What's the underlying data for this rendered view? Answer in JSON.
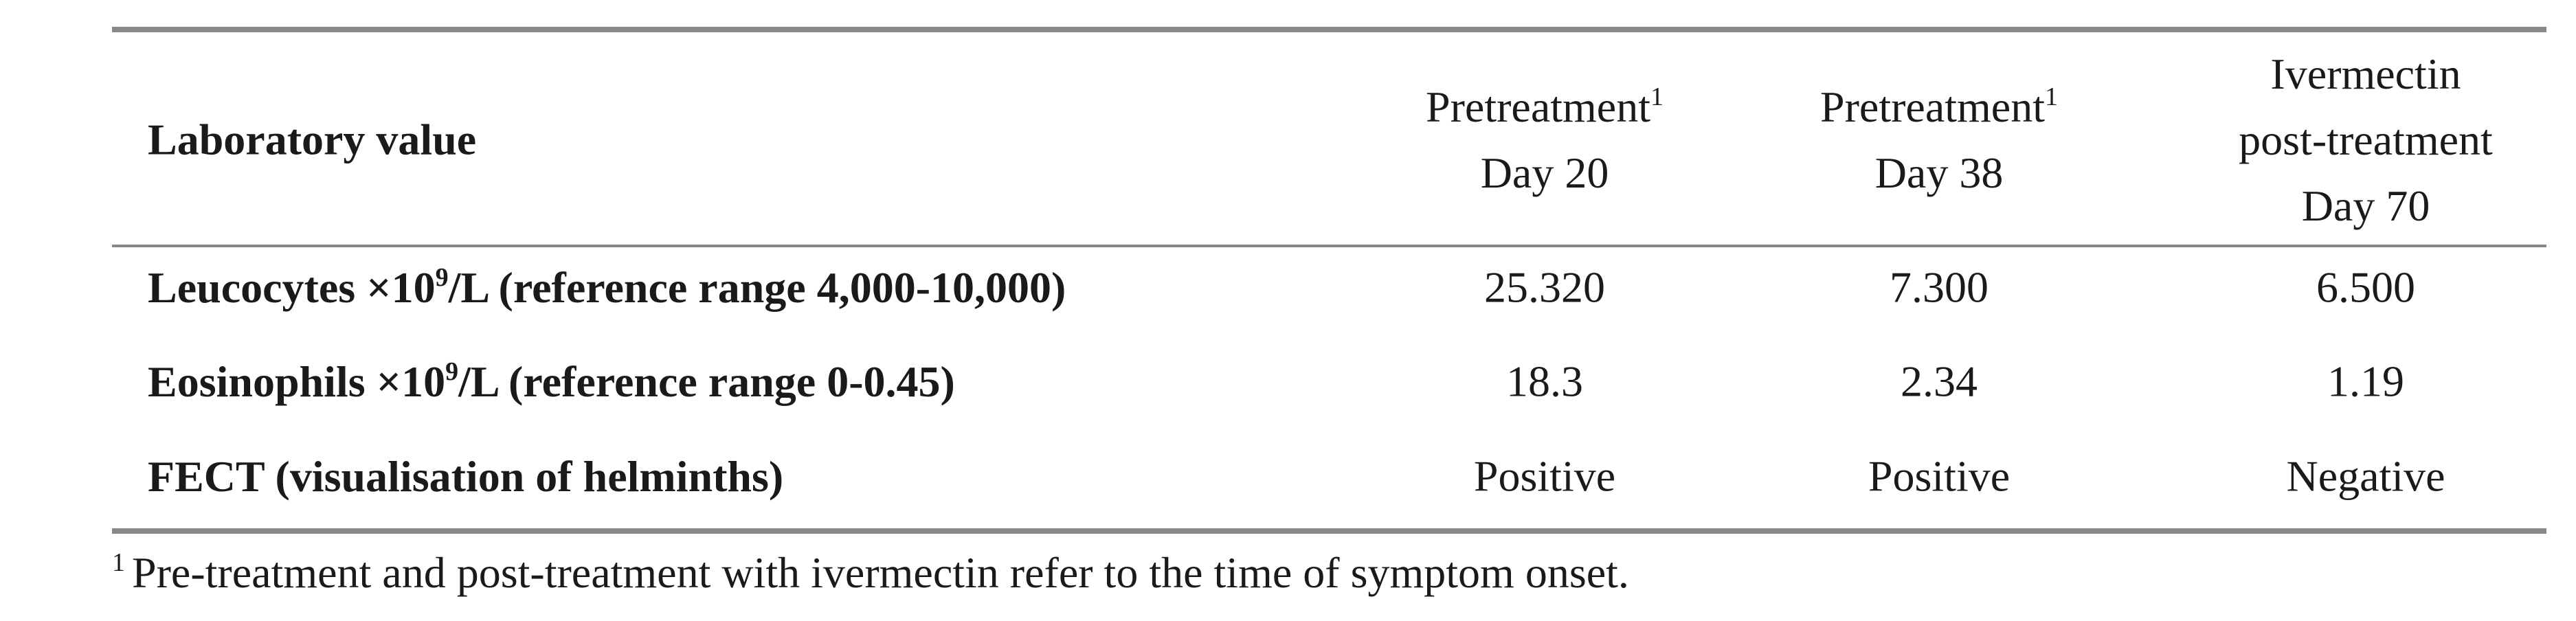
{
  "table": {
    "header": {
      "label": "Laboratory value",
      "columns": [
        {
          "lines": [
            "Pretreatment",
            "Day 20"
          ],
          "sup": "1"
        },
        {
          "lines": [
            "Pretreatment",
            "Day 38"
          ],
          "sup": "1"
        },
        {
          "lines": [
            "Ivermectin",
            "post-treatment",
            "Day 70"
          ]
        }
      ]
    },
    "rows": [
      {
        "label": {
          "before": "Leucocytes ×10",
          "sup": "9",
          "after": "/L (reference range 4,000-10,000)"
        },
        "cells": [
          "25.320",
          "7.300",
          "6.500"
        ]
      },
      {
        "label": {
          "before": "Eosinophils ×10",
          "sup": "9",
          "after": "/L (reference range 0-0.45)"
        },
        "cells": [
          "18.3",
          "2.34",
          "1.19"
        ]
      },
      {
        "label": {
          "text": "FECT (visualisation of helminths)"
        },
        "cells": [
          "Positive",
          "Positive",
          "Negative"
        ]
      }
    ]
  },
  "footnote": {
    "marker": "1",
    "text": "Pre-treatment and post-treatment with ivermectin refer to the time of symptom onset."
  }
}
